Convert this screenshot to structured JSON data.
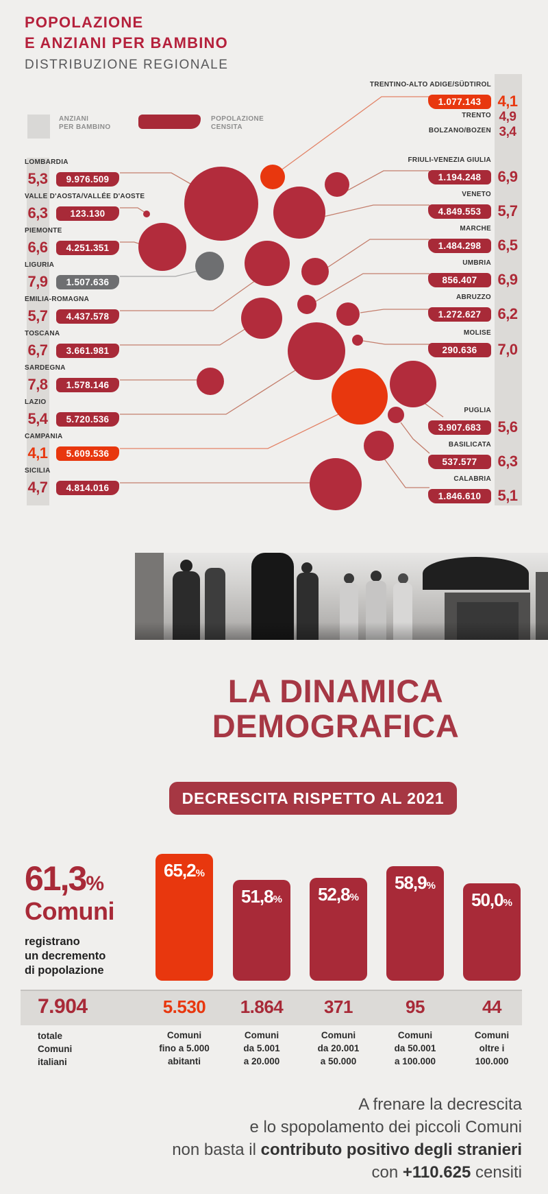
{
  "header": {
    "title_line1": "POPOLAZIONE",
    "title_line2": "E ANZIANI PER BAMBINO",
    "subtitle": "DISTRIBUZIONE REGIONALE"
  },
  "legend": {
    "anziani_l1": "ANZIANI",
    "anziani_l2": "PER BAMBINO",
    "popolazione_l1": "POPOLAZIONE",
    "popolazione_l2": "CENSITA"
  },
  "labels": {
    "percent_sign": "%"
  },
  "colors": {
    "crimson": "#a82a38",
    "bright_red": "#e8370e",
    "gray": "#6e6f71",
    "band_gray": "#dcdad7",
    "title_red": "#b5213c"
  },
  "dinamica": {
    "title_l1": "LA DINAMICA",
    "title_l2": "DEMOGRAFICA",
    "banner": "DECRESCITA RISPETTO AL 2021"
  },
  "stats": {
    "big_pct": "61,3",
    "big_label": "Comuni",
    "desc_l1": "registrano",
    "desc_l2": "un decremento",
    "desc_l3": "di popolazione",
    "total_label": "7.904",
    "total_l1": "totale",
    "total_l2": "Comuni",
    "total_l3": "italiani"
  },
  "footer": {
    "line1": "A frenare la decrescita",
    "line2": "e lo spopolamento dei piccoli Comuni",
    "line3_pre": "non basta il ",
    "line3_bold": "contributo positivo degli stranieri",
    "line4_pre": "con ",
    "line4_bold": "+110.625",
    "line4_post": " censiti"
  },
  "chart_data": [
    {
      "type": "bubble-map",
      "title": "POPOLAZIONE E ANZIANI PER BAMBINO — DISTRIBUZIONE REGIONALE",
      "legend_entries": [
        "ANZIANI PER BAMBINO",
        "POPOLAZIONE CENSITA"
      ],
      "regions_left": [
        {
          "name": "LOMBARDIA",
          "population": 9976509,
          "pop_label": "9.976.509",
          "ratio": 5.3,
          "ratio_label": "5,3"
        },
        {
          "name": "VALLE D'AOSTA/VALLÉE D'AOSTE",
          "population": 123130,
          "pop_label": "123.130",
          "ratio": 6.3,
          "ratio_label": "6,3"
        },
        {
          "name": "PIEMONTE",
          "population": 4251351,
          "pop_label": "4.251.351",
          "ratio": 6.6,
          "ratio_label": "6,6"
        },
        {
          "name": "LIGURIA",
          "population": 1507636,
          "pop_label": "1.507.636",
          "ratio": 7.9,
          "ratio_label": "7,9",
          "style": "gray"
        },
        {
          "name": "EMILIA-ROMAGNA",
          "population": 4437578,
          "pop_label": "4.437.578",
          "ratio": 5.7,
          "ratio_label": "5,7"
        },
        {
          "name": "TOSCANA",
          "population": 3661981,
          "pop_label": "3.661.981",
          "ratio": 6.7,
          "ratio_label": "6,7"
        },
        {
          "name": "SARDEGNA",
          "population": 1578146,
          "pop_label": "1.578.146",
          "ratio": 7.8,
          "ratio_label": "7,8"
        },
        {
          "name": "LAZIO",
          "population": 5720536,
          "pop_label": "5.720.536",
          "ratio": 5.4,
          "ratio_label": "5,4"
        },
        {
          "name": "CAMPANIA",
          "population": 5609536,
          "pop_label": "5.609.536",
          "ratio": 4.1,
          "ratio_label": "4,1",
          "style": "bright"
        },
        {
          "name": "SICILIA",
          "population": 4814016,
          "pop_label": "4.814.016",
          "ratio": 4.7,
          "ratio_label": "4,7"
        }
      ],
      "regions_right": [
        {
          "name": "TRENTINO-ALTO ADIGE/SÜDTIROL",
          "population": 1077143,
          "pop_label": "1.077.143",
          "ratio": 4.1,
          "ratio_label": "4,1",
          "style": "bright"
        },
        {
          "name": "TRENTO",
          "ratio": 4.9,
          "ratio_label": "4,9",
          "style": "sub"
        },
        {
          "name": "BOLZANO/BOZEN",
          "ratio": 3.4,
          "ratio_label": "3,4",
          "style": "sub"
        },
        {
          "name": "FRIULI-VENEZIA GIULIA",
          "population": 1194248,
          "pop_label": "1.194.248",
          "ratio": 6.9,
          "ratio_label": "6,9"
        },
        {
          "name": "VENETO",
          "population": 4849553,
          "pop_label": "4.849.553",
          "ratio": 5.7,
          "ratio_label": "5,7"
        },
        {
          "name": "MARCHE",
          "population": 1484298,
          "pop_label": "1.484.298",
          "ratio": 6.5,
          "ratio_label": "6,5"
        },
        {
          "name": "UMBRIA",
          "population": 856407,
          "pop_label": "856.407",
          "ratio": 6.9,
          "ratio_label": "6,9"
        },
        {
          "name": "ABRUZZO",
          "population": 1272627,
          "pop_label": "1.272.627",
          "ratio": 6.2,
          "ratio_label": "6,2"
        },
        {
          "name": "MOLISE",
          "population": 290636,
          "pop_label": "290.636",
          "ratio": 7.0,
          "ratio_label": "7,0"
        },
        {
          "name": "PUGLIA",
          "population": 3907683,
          "pop_label": "3.907.683",
          "ratio": 5.6,
          "ratio_label": "5,6"
        },
        {
          "name": "BASILICATA",
          "population": 537577,
          "pop_label": "537.577",
          "ratio": 6.3,
          "ratio_label": "6,3"
        },
        {
          "name": "CALABRIA",
          "population": 1846610,
          "pop_label": "1.846.610",
          "ratio": 5.1,
          "ratio_label": "5,1"
        }
      ]
    },
    {
      "type": "bar",
      "title": "DECRESCITA RISPETTO AL 2021",
      "subtitle_share": 61.3,
      "total_comuni": 7904,
      "stranieri_censiti": 110625,
      "categories": [
        "Comuni fino a 5.000 abitanti",
        "Comuni da 5.001 a 20.000",
        "Comuni da 20.001 a 50.000",
        "Comuni da 50.001 a 100.000",
        "Comuni oltre i 100.000"
      ],
      "values": [
        65.2,
        51.8,
        52.8,
        58.9,
        50.0
      ],
      "counts": [
        5530,
        1864,
        371,
        95,
        44
      ],
      "bars": [
        {
          "pct_label": "65,2",
          "count_label": "5.530",
          "label_l1": "Comuni",
          "label_l2": "fino a 5.000",
          "label_l3": "abitanti",
          "style": "bright"
        },
        {
          "pct_label": "51,8",
          "count_label": "1.864",
          "label_l1": "Comuni",
          "label_l2": "da 5.001",
          "label_l3": "a 20.000"
        },
        {
          "pct_label": "52,8",
          "count_label": "371",
          "label_l1": "Comuni",
          "label_l2": "da 20.001",
          "label_l3": "a 50.000"
        },
        {
          "pct_label": "58,9",
          "count_label": "95",
          "label_l1": "Comuni",
          "label_l2": "da 50.001",
          "label_l3": "a 100.000"
        },
        {
          "pct_label": "50,0",
          "count_label": "44",
          "label_l1": "Comuni",
          "label_l2": "oltre i",
          "label_l3": "100.000"
        }
      ]
    }
  ]
}
